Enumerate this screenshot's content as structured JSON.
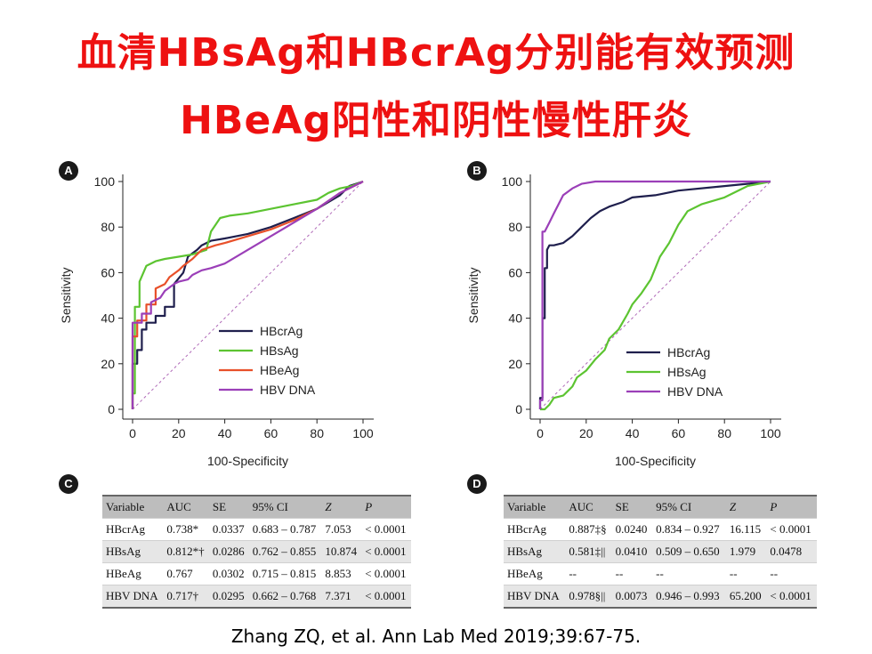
{
  "title": {
    "line1": "血清HBsAg和HBcrAg分别能有效预测",
    "line2": "HBeAg阳性和阴性慢性肝炎"
  },
  "citation": "Zhang ZQ, et al. Ann Lab Med 2019;39:67-75.",
  "colors": {
    "HBcrAg": "#1f1f4d",
    "HBsAg": "#5cc431",
    "HBeAg": "#e8502a",
    "HBV DNA": "#9b3fb8",
    "title": "#ee1111"
  },
  "chart_data": [
    {
      "panel": "A",
      "type": "line",
      "xlabel": "100-Specificity",
      "ylabel": "Sensitivity",
      "xlim": [
        0,
        100
      ],
      "ylim": [
        0,
        100
      ],
      "xticks": [
        0,
        20,
        40,
        60,
        80,
        100
      ],
      "yticks": [
        0,
        20,
        40,
        60,
        80,
        100
      ],
      "legend": "center-right",
      "series": [
        {
          "name": "HBcrAg",
          "color": "#1f1f4d",
          "x": [
            0,
            0,
            2,
            2,
            4,
            4,
            6,
            6,
            10,
            10,
            14,
            14,
            18,
            18,
            22,
            24,
            28,
            30,
            34,
            40,
            50,
            60,
            70,
            80,
            90,
            94,
            100
          ],
          "y": [
            0,
            20,
            20,
            26,
            26,
            35,
            35,
            38,
            38,
            41,
            41,
            45,
            45,
            55,
            60,
            67,
            70,
            72,
            74,
            75,
            77,
            80,
            84,
            88,
            94,
            98,
            100
          ]
        },
        {
          "name": "HBsAg",
          "color": "#5cc431",
          "x": [
            0,
            0,
            1,
            1,
            3,
            3,
            6,
            10,
            14,
            20,
            26,
            32,
            34,
            38,
            42,
            50,
            60,
            70,
            80,
            85,
            90,
            95,
            100
          ],
          "y": [
            0,
            7,
            7,
            45,
            45,
            56,
            63,
            65,
            66,
            67,
            68,
            70,
            78,
            84,
            85,
            86,
            88,
            90,
            92,
            95,
            97,
            98,
            100
          ]
        },
        {
          "name": "HBeAg",
          "color": "#e8502a",
          "x": [
            0,
            0,
            2,
            2,
            6,
            6,
            10,
            10,
            14,
            16,
            20,
            22,
            26,
            30,
            36,
            40,
            50,
            60,
            70,
            80,
            90,
            100
          ],
          "y": [
            0,
            32,
            32,
            39,
            39,
            46,
            46,
            53,
            55,
            58,
            61,
            63,
            66,
            70,
            72,
            73,
            76,
            79,
            83,
            88,
            95,
            100
          ]
        },
        {
          "name": "HBV DNA",
          "color": "#9b3fb8",
          "x": [
            0,
            0,
            4,
            4,
            8,
            8,
            12,
            14,
            18,
            20,
            24,
            26,
            30,
            34,
            40,
            50,
            60,
            70,
            80,
            90,
            100
          ],
          "y": [
            0,
            38,
            38,
            42,
            42,
            47,
            49,
            52,
            55,
            56,
            57,
            59,
            61,
            62,
            64,
            70,
            76,
            82,
            88,
            95,
            100
          ]
        }
      ],
      "diagonal": true
    },
    {
      "panel": "B",
      "type": "line",
      "xlabel": "100-Specificity",
      "ylabel": "Sensitivity",
      "xlim": [
        0,
        100
      ],
      "ylim": [
        0,
        100
      ],
      "xticks": [
        0,
        20,
        40,
        60,
        80,
        100
      ],
      "yticks": [
        0,
        20,
        40,
        60,
        80,
        100
      ],
      "legend": "bottom-right",
      "series": [
        {
          "name": "HBcrAg",
          "color": "#1f1f4d",
          "x": [
            0,
            0,
            1,
            1,
            2,
            2,
            3,
            3,
            4,
            6,
            10,
            14,
            18,
            22,
            26,
            30,
            36,
            40,
            50,
            60,
            80,
            100
          ],
          "y": [
            0,
            5,
            5,
            40,
            40,
            62,
            62,
            70,
            72,
            72,
            73,
            76,
            80,
            84,
            87,
            89,
            91,
            93,
            94,
            96,
            98,
            100
          ]
        },
        {
          "name": "HBsAg",
          "color": "#5cc431",
          "x": [
            0,
            2,
            4,
            6,
            10,
            14,
            16,
            20,
            24,
            28,
            30,
            34,
            38,
            40,
            44,
            48,
            50,
            52,
            56,
            60,
            64,
            70,
            80,
            90,
            100
          ],
          "y": [
            0,
            0,
            2,
            5,
            6,
            10,
            14,
            17,
            22,
            26,
            31,
            35,
            42,
            46,
            51,
            57,
            62,
            67,
            73,
            81,
            87,
            90,
            93,
            98,
            100
          ]
        },
        {
          "name": "HBV DNA",
          "color": "#9b3fb8",
          "x": [
            0,
            0,
            1,
            1,
            2,
            4,
            6,
            8,
            10,
            14,
            18,
            24,
            30,
            100
          ],
          "y": [
            0,
            4,
            4,
            78,
            78,
            82,
            86,
            90,
            94,
            97,
            99,
            100,
            100,
            100
          ]
        }
      ],
      "diagonal": true
    }
  ],
  "tables": {
    "C": {
      "headers": [
        "Variable",
        "AUC",
        "SE",
        "95% CI",
        "Z",
        "P"
      ],
      "rows": [
        [
          "HBcrAg",
          "0.738*",
          "0.0337",
          "0.683 – 0.787",
          "7.053",
          "< 0.0001"
        ],
        [
          "HBsAg",
          "0.812*†",
          "0.0286",
          "0.762 – 0.855",
          "10.874",
          "< 0.0001"
        ],
        [
          "HBeAg",
          "0.767",
          "0.0302",
          "0.715 – 0.815",
          "8.853",
          "< 0.0001"
        ],
        [
          "HBV DNA",
          "0.717†",
          "0.0295",
          "0.662 – 0.768",
          "7.371",
          "< 0.0001"
        ]
      ]
    },
    "D": {
      "headers": [
        "Variable",
        "AUC",
        "SE",
        "95% CI",
        "Z",
        "P"
      ],
      "rows": [
        [
          "HBcrAg",
          "0.887‡§",
          "0.0240",
          "0.834 – 0.927",
          "16.115",
          "< 0.0001"
        ],
        [
          "HBsAg",
          "0.581‡||",
          "0.0410",
          "0.509 – 0.650",
          "1.979",
          "0.0478"
        ],
        [
          "HBeAg",
          "--",
          "--",
          "--",
          "--",
          "--"
        ],
        [
          "HBV DNA",
          "0.978§||",
          "0.0073",
          "0.946 – 0.993",
          "65.200",
          "< 0.0001"
        ]
      ]
    }
  },
  "panel_letters": {
    "A": "A",
    "B": "B",
    "C": "C",
    "D": "D"
  }
}
